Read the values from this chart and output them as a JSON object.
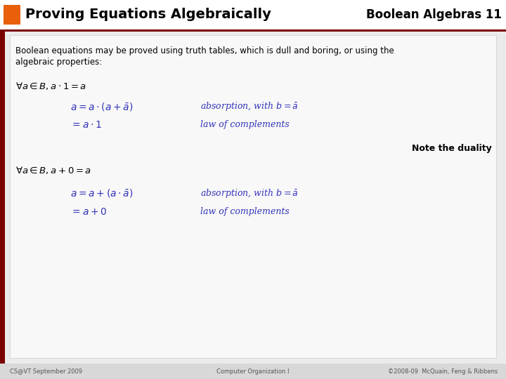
{
  "title": "Proving Equations Algebraically",
  "subtitle": "Boolean Algebras 11",
  "bg_color": "#d8d8d8",
  "content_bg": "#ebebeb",
  "header_bg": "#ffffff",
  "orange_rect": "#e8610a",
  "dark_red_bar": "#7a0000",
  "title_color": "#000000",
  "subtitle_color": "#000000",
  "body_text_color": "#000000",
  "blue_color": "#3333bb",
  "footer_left": "CS@VT September 2009",
  "footer_center": "Computer Organization I",
  "footer_right": "©2008-09  McQuain, Feng & Ribbens",
  "intro_line1": "Boolean equations may be proved using truth tables, which is dull and boring, or using the",
  "intro_line2": "algebraic properties:",
  "note_text": "Note the duality"
}
